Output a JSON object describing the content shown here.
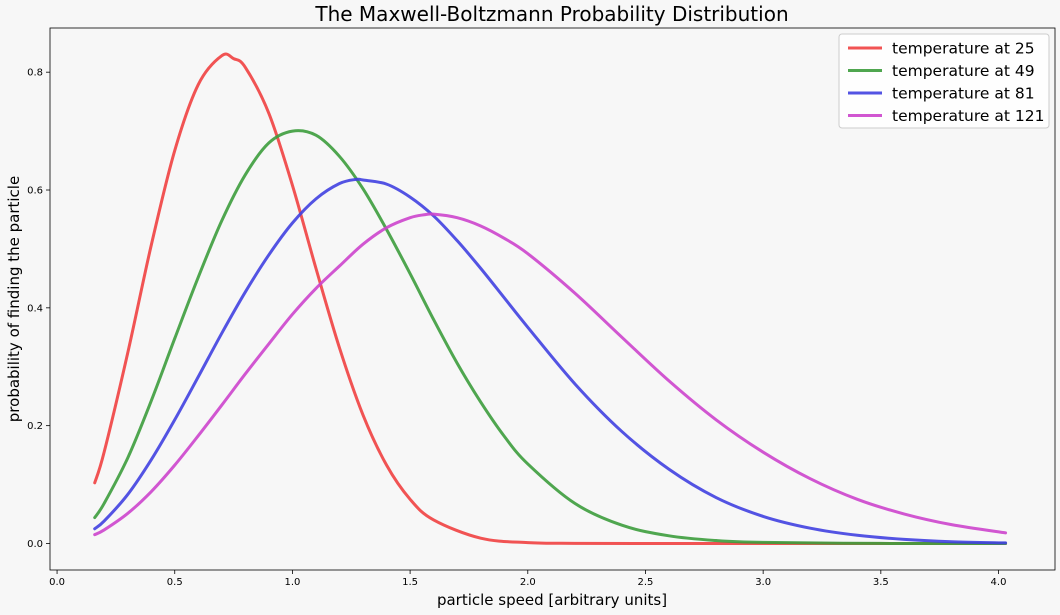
{
  "chart_data": {
    "type": "line",
    "title": "The Maxwell-Boltzmann Probability Distribution",
    "xlabel": "particle speed [arbitrary units]",
    "ylabel": "probability of finding the particle",
    "xlim": [
      -0.03,
      4.24
    ],
    "ylim": [
      -0.045,
      0.875
    ],
    "xticks": [
      0.0,
      0.5,
      1.0,
      1.5,
      2.0,
      2.5,
      3.0,
      3.5,
      4.0
    ],
    "xtick_labels": [
      "0.0",
      "0.5",
      "1.0",
      "1.5",
      "2.0",
      "2.5",
      "3.0",
      "3.5",
      "4.0"
    ],
    "yticks": [
      0.0,
      0.2,
      0.4,
      0.6,
      0.8
    ],
    "ytick_labels": [
      "0.0",
      "0.2",
      "0.4",
      "0.6",
      "0.8"
    ],
    "grid": false,
    "legend_position": "top-right",
    "series": [
      {
        "name": "temperature at 25",
        "color": "#f04040",
        "points": [
          [
            0.16,
            0.103
          ],
          [
            0.2,
            0.155
          ],
          [
            0.3,
            0.323
          ],
          [
            0.4,
            0.506
          ],
          [
            0.5,
            0.667
          ],
          [
            0.6,
            0.779
          ],
          [
            0.7,
            0.828
          ],
          [
            0.75,
            0.823
          ],
          [
            0.8,
            0.808
          ],
          [
            0.9,
            0.73
          ],
          [
            1.0,
            0.608
          ],
          [
            1.1,
            0.467
          ],
          [
            1.2,
            0.332
          ],
          [
            1.3,
            0.218
          ],
          [
            1.4,
            0.133
          ],
          [
            1.5,
            0.075
          ],
          [
            1.6,
            0.04
          ],
          [
            1.8,
            0.009
          ],
          [
            2.0,
            0.0015
          ],
          [
            2.2,
            0.0002
          ],
          [
            2.5,
            0.0
          ],
          [
            3.0,
            0.0
          ],
          [
            3.5,
            0.0
          ],
          [
            4.03,
            0.0
          ]
        ]
      },
      {
        "name": "temperature at 49",
        "color": "#3c9c3c",
        "points": [
          [
            0.16,
            0.044
          ],
          [
            0.2,
            0.068
          ],
          [
            0.3,
            0.145
          ],
          [
            0.4,
            0.242
          ],
          [
            0.5,
            0.348
          ],
          [
            0.6,
            0.452
          ],
          [
            0.7,
            0.548
          ],
          [
            0.8,
            0.626
          ],
          [
            0.9,
            0.68
          ],
          [
            1.0,
            0.7
          ],
          [
            1.1,
            0.693
          ],
          [
            1.2,
            0.657
          ],
          [
            1.3,
            0.602
          ],
          [
            1.4,
            0.533
          ],
          [
            1.5,
            0.458
          ],
          [
            1.6,
            0.38
          ],
          [
            1.7,
            0.306
          ],
          [
            1.8,
            0.24
          ],
          [
            1.9,
            0.182
          ],
          [
            2.0,
            0.135
          ],
          [
            2.2,
            0.068
          ],
          [
            2.4,
            0.031
          ],
          [
            2.6,
            0.013
          ],
          [
            2.8,
            0.005
          ],
          [
            3.0,
            0.0018
          ],
          [
            3.5,
            0.0001
          ],
          [
            4.03,
            0.0
          ]
        ]
      },
      {
        "name": "temperature at 81",
        "color": "#4040e0",
        "points": [
          [
            0.16,
            0.025
          ],
          [
            0.2,
            0.038
          ],
          [
            0.3,
            0.083
          ],
          [
            0.4,
            0.142
          ],
          [
            0.5,
            0.21
          ],
          [
            0.6,
            0.283
          ],
          [
            0.7,
            0.357
          ],
          [
            0.8,
            0.427
          ],
          [
            0.9,
            0.49
          ],
          [
            1.0,
            0.544
          ],
          [
            1.1,
            0.585
          ],
          [
            1.2,
            0.611
          ],
          [
            1.27,
            0.618
          ],
          [
            1.3,
            0.617
          ],
          [
            1.4,
            0.61
          ],
          [
            1.5,
            0.588
          ],
          [
            1.6,
            0.556
          ],
          [
            1.7,
            0.514
          ],
          [
            1.8,
            0.467
          ],
          [
            1.9,
            0.417
          ],
          [
            2.0,
            0.367
          ],
          [
            2.2,
            0.271
          ],
          [
            2.4,
            0.19
          ],
          [
            2.6,
            0.126
          ],
          [
            2.8,
            0.078
          ],
          [
            3.0,
            0.046
          ],
          [
            3.2,
            0.026
          ],
          [
            3.4,
            0.014
          ],
          [
            3.6,
            0.007
          ],
          [
            3.8,
            0.003
          ],
          [
            4.03,
            0.001
          ]
        ]
      },
      {
        "name": "temperature at 121",
        "color": "#cc44cc",
        "points": [
          [
            0.16,
            0.015
          ],
          [
            0.2,
            0.023
          ],
          [
            0.3,
            0.051
          ],
          [
            0.4,
            0.088
          ],
          [
            0.5,
            0.133
          ],
          [
            0.6,
            0.183
          ],
          [
            0.7,
            0.235
          ],
          [
            0.8,
            0.288
          ],
          [
            0.9,
            0.339
          ],
          [
            1.0,
            0.389
          ],
          [
            1.1,
            0.433
          ],
          [
            1.2,
            0.471
          ],
          [
            1.3,
            0.508
          ],
          [
            1.4,
            0.536
          ],
          [
            1.5,
            0.553
          ],
          [
            1.56,
            0.558
          ],
          [
            1.6,
            0.559
          ],
          [
            1.7,
            0.553
          ],
          [
            1.8,
            0.539
          ],
          [
            1.9,
            0.518
          ],
          [
            2.0,
            0.492
          ],
          [
            2.2,
            0.425
          ],
          [
            2.4,
            0.35
          ],
          [
            2.6,
            0.276
          ],
          [
            2.8,
            0.21
          ],
          [
            3.0,
            0.155
          ],
          [
            3.2,
            0.11
          ],
          [
            3.4,
            0.075
          ],
          [
            3.6,
            0.05
          ],
          [
            3.8,
            0.032
          ],
          [
            4.03,
            0.018
          ]
        ]
      }
    ]
  }
}
